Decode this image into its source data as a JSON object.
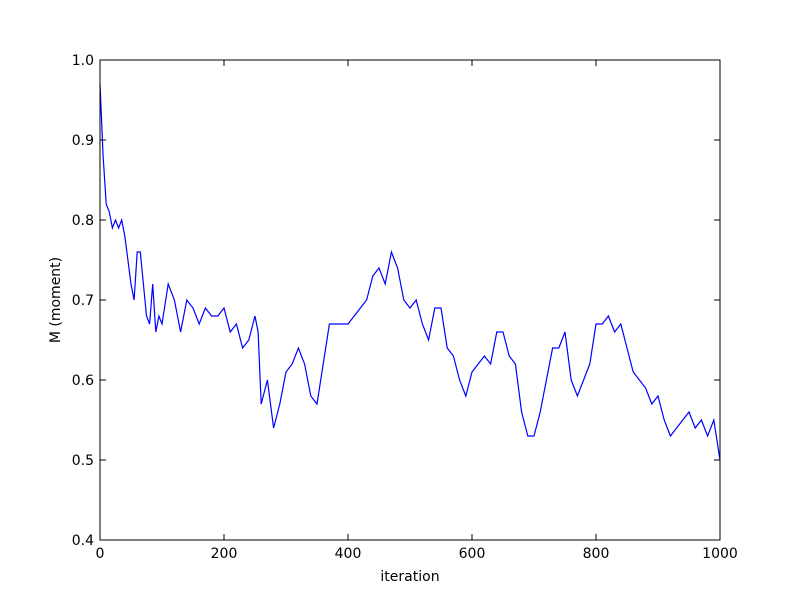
{
  "chart_data": {
    "type": "line",
    "xlabel": "iteration",
    "ylabel": "M (moment)",
    "x": [
      0,
      5,
      10,
      15,
      20,
      25,
      30,
      35,
      40,
      45,
      50,
      55,
      60,
      65,
      70,
      75,
      80,
      85,
      90,
      95,
      100,
      110,
      120,
      130,
      140,
      150,
      160,
      170,
      180,
      190,
      200,
      210,
      220,
      230,
      240,
      250,
      255,
      260,
      270,
      280,
      290,
      300,
      310,
      320,
      330,
      340,
      350,
      360,
      370,
      380,
      390,
      400,
      410,
      420,
      430,
      440,
      450,
      460,
      470,
      480,
      490,
      500,
      510,
      520,
      530,
      540,
      550,
      560,
      570,
      580,
      590,
      600,
      610,
      620,
      630,
      640,
      650,
      660,
      670,
      680,
      690,
      700,
      710,
      720,
      730,
      740,
      750,
      760,
      770,
      780,
      790,
      800,
      810,
      820,
      830,
      840,
      850,
      860,
      870,
      880,
      890,
      900,
      910,
      920,
      930,
      940,
      950,
      960,
      970,
      980,
      990,
      1000
    ],
    "series": [
      {
        "color": "#0000ff",
        "values": [
          0.97,
          0.88,
          0.82,
          0.81,
          0.79,
          0.8,
          0.79,
          0.8,
          0.78,
          0.75,
          0.72,
          0.7,
          0.76,
          0.76,
          0.72,
          0.68,
          0.67,
          0.72,
          0.66,
          0.68,
          0.67,
          0.72,
          0.7,
          0.66,
          0.7,
          0.69,
          0.67,
          0.69,
          0.68,
          0.68,
          0.69,
          0.66,
          0.67,
          0.64,
          0.65,
          0.68,
          0.66,
          0.57,
          0.6,
          0.54,
          0.57,
          0.61,
          0.62,
          0.64,
          0.62,
          0.58,
          0.57,
          0.62,
          0.67,
          0.67,
          0.67,
          0.67,
          0.68,
          0.69,
          0.7,
          0.73,
          0.74,
          0.72,
          0.76,
          0.74,
          0.7,
          0.69,
          0.7,
          0.67,
          0.65,
          0.69,
          0.69,
          0.64,
          0.63,
          0.6,
          0.58,
          0.61,
          0.62,
          0.63,
          0.62,
          0.66,
          0.66,
          0.63,
          0.62,
          0.56,
          0.53,
          0.53,
          0.56,
          0.6,
          0.64,
          0.64,
          0.66,
          0.6,
          0.58,
          0.6,
          0.62,
          0.67,
          0.67,
          0.68,
          0.66,
          0.67,
          0.64,
          0.61,
          0.6,
          0.59,
          0.57,
          0.58,
          0.55,
          0.53,
          0.54,
          0.55,
          0.56,
          0.54,
          0.55,
          0.53,
          0.55,
          0.5
        ]
      }
    ],
    "xlim": [
      0,
      1000
    ],
    "xticks": [
      0,
      200,
      400,
      600,
      800,
      1000
    ],
    "ylim": [
      0.4,
      1
    ],
    "yticks": [
      0.4,
      0.5,
      0.6,
      0.7,
      0.8,
      0.9,
      {
        "value": 1,
        "label": "1.0"
      }
    ]
  }
}
